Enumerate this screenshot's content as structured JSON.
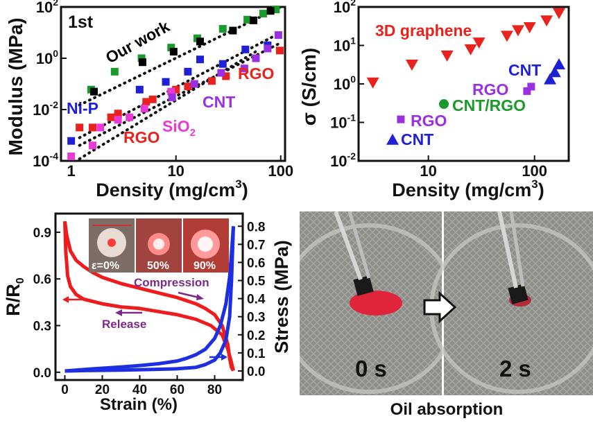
{
  "chart_data": [
    {
      "type": "scatter",
      "title": "1st",
      "xlabel": "Density (mg/cm",
      "xlabel_sup": "3",
      "xlabel_tail": ")",
      "ylabel": "Modulus (MPa)",
      "xscale": "log",
      "yscale": "log",
      "xlim": [
        0.8,
        110
      ],
      "ylim": [
        0.0001,
        100
      ],
      "x_ticks": [
        "1",
        "10",
        "100"
      ],
      "y_ticks": [
        {
          "base": "10",
          "exp": "-4"
        },
        {
          "base": "10",
          "exp": "-2"
        },
        {
          "base": "10",
          "exp": "0"
        },
        {
          "base": "10",
          "exp": "2"
        }
      ],
      "annotations": [
        {
          "text": "Our work",
          "color": "#000000"
        },
        {
          "text": "Ni-P",
          "color": "#1f1fd6"
        },
        {
          "text": "RGO",
          "color": "#e8221c"
        },
        {
          "text": "SiO",
          "sub": "2",
          "color": "#e83bd4"
        },
        {
          "text": "CNT",
          "color": "#9a30e0"
        },
        {
          "text": "RGO",
          "color": "#e8221c"
        }
      ],
      "series": [
        {
          "color": "#1a9a2a",
          "marker": "square",
          "x": [
            1.55,
            2.6,
            4.7,
            9.0,
            16,
            28,
            48,
            68,
            90
          ],
          "y": [
            0.06,
            0.3,
            1.0,
            2.6,
            6.0,
            14,
            32,
            55,
            80
          ]
        },
        {
          "color": "#000000",
          "marker": "square",
          "x": [
            1.65,
            4.8,
            9.5,
            17,
            35,
            55,
            80
          ],
          "y": [
            0.05,
            0.7,
            1.8,
            4.5,
            12,
            30,
            70
          ]
        },
        {
          "color": "#1f1fd6",
          "marker": "square",
          "x": [
            1.0,
            4.5,
            8.0,
            13,
            17,
            28,
            46,
            75
          ],
          "y": [
            0.0006,
            0.06,
            0.12,
            0.3,
            0.9,
            0.6,
            2.2,
            3.2
          ]
        },
        {
          "color": "#e8221c",
          "marker": "square",
          "x": [
            1.2,
            1.6,
            2.4,
            2.8,
            5.2,
            6.0,
            10,
            13,
            22,
            30,
            98
          ],
          "y": [
            0.002,
            0.002,
            0.005,
            0.007,
            0.02,
            0.025,
            0.06,
            0.08,
            0.13,
            0.2,
            2.0
          ]
        },
        {
          "color": "#e83bd4",
          "marker": "square",
          "x": [
            1.0,
            1.6,
            1.9,
            2.8,
            3.6,
            5.0,
            9.0
          ],
          "y": [
            0.00015,
            0.0004,
            0.002,
            0.004,
            0.005,
            0.011,
            0.05
          ]
        },
        {
          "color": "#9a30e0",
          "marker": "square",
          "x": [
            9.2,
            15,
            27,
            45,
            58,
            75,
            95
          ],
          "y": [
            0.03,
            0.1,
            0.27,
            0.4,
            1.0,
            2.4,
            8.0
          ]
        }
      ],
      "trendlines": [
        {
          "x": [
            1.2,
            100
          ],
          "y": [
            0.015,
            100
          ]
        },
        {
          "x": [
            1.2,
            100
          ],
          "y": [
            0.0008,
            10
          ]
        },
        {
          "x": [
            1.2,
            100
          ],
          "y": [
            0.0004,
            4
          ]
        },
        {
          "x": [
            1.2,
            60
          ],
          "y": [
            0.00012,
            2
          ]
        }
      ]
    },
    {
      "type": "scatter",
      "title": "",
      "xlabel": "Density (mg/cm",
      "xlabel_sup": "3",
      "xlabel_tail": ")",
      "ylabel": "σ (S/cm)",
      "xscale": "log",
      "yscale": "log",
      "xlim": [
        2.2,
        210
      ],
      "ylim": [
        0.01,
        100
      ],
      "x_ticks": [
        "10",
        "100"
      ],
      "y_ticks": [
        {
          "base": "10",
          "exp": "-2"
        },
        {
          "base": "10",
          "exp": "-1"
        },
        {
          "base": "10",
          "exp": "0"
        },
        {
          "base": "10",
          "exp": "1"
        },
        {
          "base": "10",
          "exp": "2"
        }
      ],
      "annotations": [
        {
          "text": "3D graphene",
          "color": "#e8221c"
        },
        {
          "text": "CNT",
          "color": "#1f1fd6"
        },
        {
          "text": "RGO",
          "color": "#9a30e0"
        },
        {
          "text": "CNT/RGO",
          "color": "#1a9a2a"
        },
        {
          "text": "RGO",
          "color": "#9a30e0"
        },
        {
          "text": "CNT",
          "color": "#1f1fd6"
        }
      ],
      "series": [
        {
          "color": "#e8221c",
          "marker": "triangle-down",
          "x": [
            3,
            7,
            15,
            25,
            30,
            55,
            70,
            90,
            130,
            170
          ],
          "y": [
            1.1,
            3.2,
            5.5,
            8.0,
            12,
            18,
            25,
            30,
            45,
            70
          ]
        },
        {
          "color": "#1f1fd6",
          "marker": "triangle-up",
          "x": [
            4.6,
            140,
            155,
            170
          ],
          "y": [
            0.035,
            1.3,
            2.0,
            3.2
          ]
        },
        {
          "color": "#9a30e0",
          "marker": "square",
          "x": [
            5.5,
            85,
            93
          ],
          "y": [
            0.12,
            0.65,
            0.85
          ]
        },
        {
          "color": "#1a9a2a",
          "marker": "circle",
          "x": [
            14
          ],
          "y": [
            0.3
          ]
        }
      ]
    },
    {
      "type": "line",
      "xlabel": "Strain (%)",
      "ylabel_left": "R/R",
      "ylabel_left_sub": "0",
      "ylabel_right": "Stress (MPa)",
      "xlim": [
        -5,
        95
      ],
      "ylim_left": [
        -0.05,
        1.02
      ],
      "ylim_right": [
        -0.05,
        0.87
      ],
      "x_ticks": [
        "0",
        "20",
        "40",
        "60",
        "80"
      ],
      "y_left_ticks": [
        "0.0",
        "0.3",
        "0.6",
        "0.9"
      ],
      "y_right_ticks": [
        "0.0",
        "0.1",
        "0.2",
        "0.3",
        "0.4",
        "0.5",
        "0.6",
        "0.7",
        "0.8"
      ],
      "annotations": [
        {
          "text": "Compression",
          "color": "#7b2a8a"
        },
        {
          "text": "Release",
          "color": "#7b2a8a"
        }
      ],
      "inset_labels": [
        "ε=0%",
        "50%",
        "90%"
      ],
      "series": [
        {
          "axis": "left",
          "color": "#ee1c1c",
          "x": [
            0,
            1,
            3,
            6,
            10,
            15,
            20,
            30,
            40,
            50,
            60,
            70,
            75,
            80,
            84,
            87,
            88,
            89,
            90
          ],
          "y": [
            0.97,
            0.88,
            0.78,
            0.72,
            0.68,
            0.64,
            0.61,
            0.57,
            0.54,
            0.51,
            0.48,
            0.44,
            0.41,
            0.37,
            0.3,
            0.18,
            0.09,
            0.03,
            0.01
          ]
        },
        {
          "axis": "left",
          "color": "#ee1c1c",
          "x": [
            0,
            0.5,
            1.5,
            3,
            6,
            10,
            20,
            30,
            40,
            50,
            60,
            70,
            78,
            84,
            87,
            89,
            90
          ],
          "y": [
            0.97,
            0.78,
            0.62,
            0.55,
            0.5,
            0.47,
            0.44,
            0.42,
            0.41,
            0.39,
            0.37,
            0.34,
            0.3,
            0.24,
            0.15,
            0.06,
            0.01
          ]
        },
        {
          "axis": "right",
          "color": "#1d2fe0",
          "x": [
            0,
            10,
            20,
            30,
            40,
            50,
            60,
            65,
            70,
            75,
            80,
            83,
            86,
            88,
            89,
            90
          ],
          "y": [
            0.0,
            0.008,
            0.015,
            0.022,
            0.03,
            0.04,
            0.055,
            0.07,
            0.09,
            0.12,
            0.18,
            0.25,
            0.37,
            0.52,
            0.65,
            0.8
          ]
        },
        {
          "axis": "right",
          "color": "#1d2fe0",
          "x": [
            0,
            5,
            15,
            30,
            45,
            60,
            70,
            75,
            80,
            83,
            86,
            88,
            89,
            90
          ],
          "y": [
            0.0,
            0.001,
            0.003,
            0.005,
            0.008,
            0.012,
            0.02,
            0.035,
            0.06,
            0.1,
            0.17,
            0.3,
            0.5,
            0.8
          ]
        }
      ]
    }
  ],
  "photo": {
    "label_left": "0 s",
    "label_right": "2 s",
    "caption": "Oil absorption"
  }
}
